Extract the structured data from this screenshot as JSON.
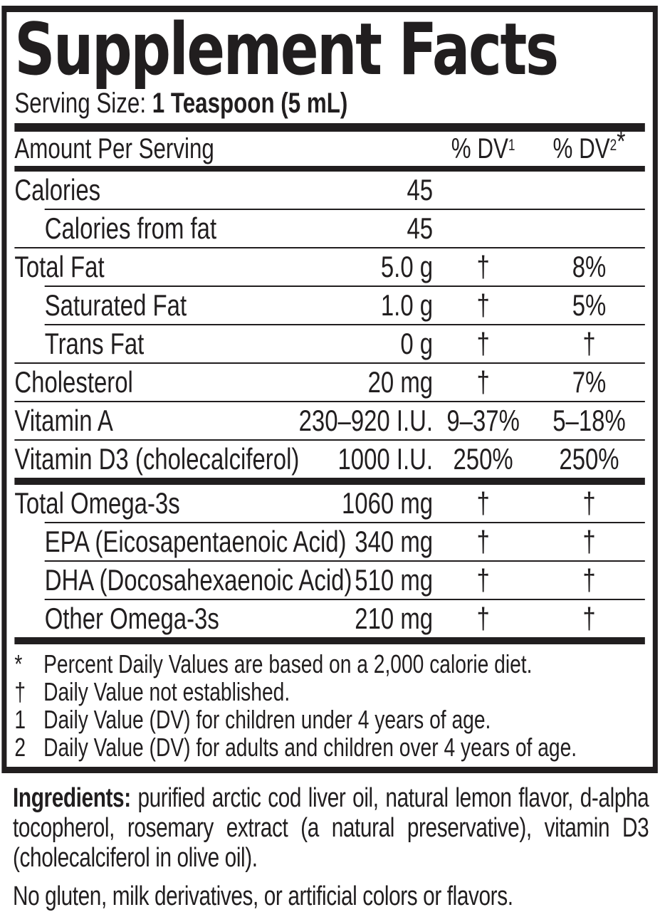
{
  "colors": {
    "ink": "#211e1f",
    "background": "#ffffff"
  },
  "label": {
    "title": "Supplement Facts",
    "serving": {
      "label": "Serving Size: ",
      "value": "1 Teaspoon (5 mL)"
    },
    "columns": {
      "amount_header": "Amount Per Serving",
      "dv1_text": "% DV",
      "dv1_sup": "1",
      "dv2_text": "% DV",
      "dv2_sup": "2",
      "dv2_star": "*"
    },
    "rows": [
      {
        "name": "Calories",
        "amount": "45",
        "dv1": "",
        "dv2": "",
        "indent": false,
        "sep": "none"
      },
      {
        "name": "Calories from fat",
        "amount": "45",
        "dv1": "",
        "dv2": "",
        "indent": true,
        "sep": "thin-indent"
      },
      {
        "name": "Total Fat",
        "amount": "5.0 g",
        "dv1": "†",
        "dv2": "8%",
        "indent": false,
        "sep": "thin"
      },
      {
        "name": "Saturated Fat",
        "amount": "1.0 g",
        "dv1": "†",
        "dv2": "5%",
        "indent": true,
        "sep": "thin-indent"
      },
      {
        "name": "Trans Fat",
        "amount": "0 g",
        "dv1": "†",
        "dv2": "†",
        "indent": true,
        "sep": "thin-indent"
      },
      {
        "name": "Cholesterol",
        "amount": "20 mg",
        "dv1": "†",
        "dv2": "7%",
        "indent": false,
        "sep": "thin"
      },
      {
        "name": "Vitamin A",
        "amount": "230–920 I.U.",
        "dv1": "9–37%",
        "dv2": "5–18%",
        "indent": false,
        "sep": "thin"
      },
      {
        "name": "Vitamin D3 (cholecalciferol)",
        "amount": "1000 I.U.",
        "dv1": "250%",
        "dv2": "250%",
        "indent": false,
        "sep": "thin"
      },
      {
        "name": "Total Omega-3s",
        "amount": "1060 mg",
        "dv1": "†",
        "dv2": "†",
        "indent": false,
        "sep": "thick"
      },
      {
        "name": "EPA (Eicosapentaenoic Acid)",
        "amount": "340 mg",
        "dv1": "†",
        "dv2": "†",
        "indent": true,
        "sep": "thin-indent"
      },
      {
        "name": "DHA (Docosahexaenoic Acid)",
        "amount": "510 mg",
        "dv1": "†",
        "dv2": "†",
        "indent": true,
        "sep": "thin-indent"
      },
      {
        "name": "Other Omega-3s",
        "amount": "210 mg",
        "dv1": "†",
        "dv2": "†",
        "indent": true,
        "sep": "thin-indent"
      }
    ],
    "footnotes": [
      {
        "marker": "*",
        "text": "Percent Daily Values are based on a 2,000 calorie diet."
      },
      {
        "marker": "†",
        "text": "Daily Value not established."
      },
      {
        "marker": "1",
        "text": "Daily Value (DV) for children under 4 years of age."
      },
      {
        "marker": "2",
        "text": "Daily Value (DV) for adults and children over 4 years of age."
      }
    ],
    "ingredients": {
      "label": "Ingredients:",
      "text": " purified arctic cod liver oil, natural lemon flavor, d-alpha tocopherol, rosemary extract (a natural preservative), vitamin D3 (cholecalciferol in olive oil)."
    },
    "allergen": "No gluten, milk derivatives, or artificial colors or flavors."
  }
}
